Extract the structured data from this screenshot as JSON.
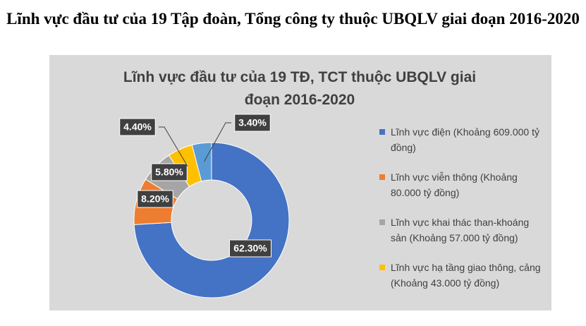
{
  "title": "Lĩnh vực đầu tư của 19 Tập đoàn, Tổng công ty thuộc UBQLV giai đoạn 2016-2020",
  "chart_data": {
    "type": "donut",
    "title": "Lĩnh vực đầu tư của 19 TĐ, TCT thuộc UBQLV giai đoạn 2016-2020",
    "categories": [
      "Lĩnh vực điện (Khoảng 609.000 tỷ đồng)",
      "Lĩnh vực viễn thông (Khoảng 80.000 tỷ đồng)",
      "Lĩnh vực khai thác than-khoáng sản (Khoảng 57.000 tỷ đồng)",
      "Lĩnh vực hạ tầng giao thông, cảng (Khoảng 43.000 tỷ đồng)",
      null
    ],
    "values": [
      62.3,
      8.2,
      5.8,
      4.4,
      3.4
    ],
    "value_labels": [
      "62.30%",
      "8.20%",
      "5.80%",
      "4.40%",
      "3.40%"
    ],
    "colors": [
      "#4472c4",
      "#ed7d31",
      "#a5a5a5",
      "#ffc000",
      "#5b9bd5"
    ],
    "legend": "right"
  }
}
